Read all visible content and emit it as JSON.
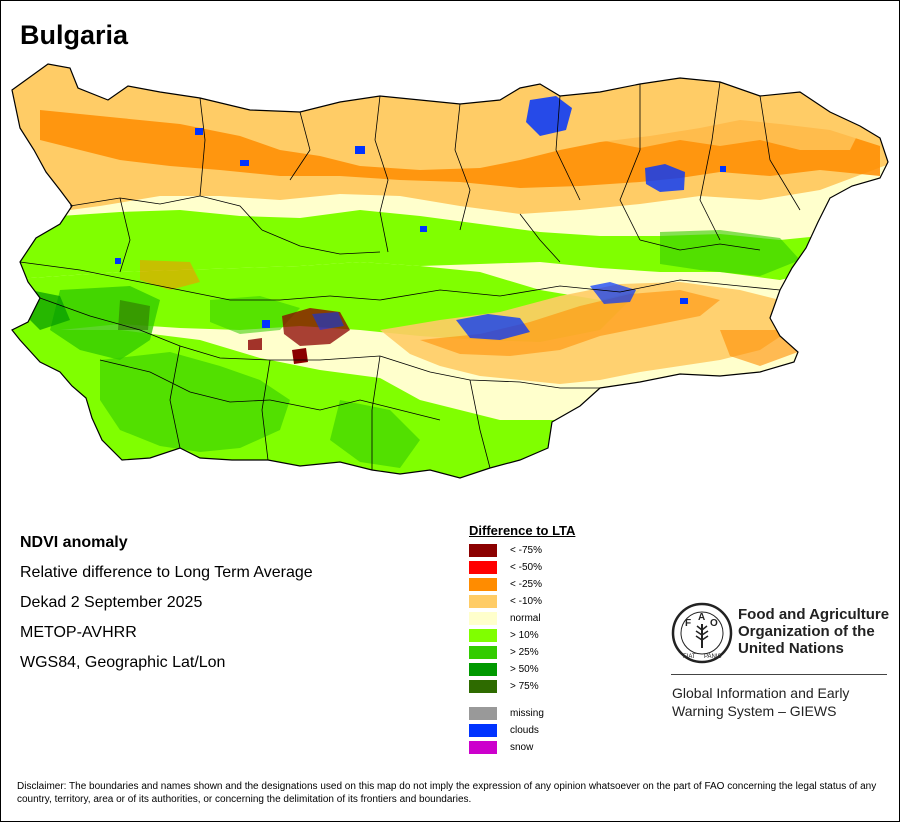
{
  "map_title": "Bulgaria",
  "info_lines": [
    "NDVI anomaly",
    "Relative difference to Long Term Average",
    "Dekad 2 September 2025",
    "METOP-AVHRR",
    "WGS84, Geographic Lat/Lon"
  ],
  "legend": {
    "title": "Difference to LTA",
    "classes": [
      {
        "label": "< -75%",
        "color": "#8b0000"
      },
      {
        "label": "< -50%",
        "color": "#ff0000"
      },
      {
        "label": "< -25%",
        "color": "#ff8c00"
      },
      {
        "label": "< -10%",
        "color": "#ffcc66"
      },
      {
        "label": "normal",
        "color": "#ffffcc"
      },
      {
        "label": "> 10%",
        "color": "#80ff00"
      },
      {
        "label": "> 25%",
        "color": "#33cc00"
      },
      {
        "label": "> 50%",
        "color": "#009900"
      },
      {
        "label": "> 75%",
        "color": "#2e6b00"
      }
    ],
    "other": [
      {
        "label": "missing",
        "color": "#999999"
      },
      {
        "label": "clouds",
        "color": "#0033ff"
      },
      {
        "label": "snow",
        "color": "#cc00cc"
      }
    ]
  },
  "organization": {
    "name_lines": [
      "Food and Agriculture",
      "Organization of the",
      "United Nations"
    ],
    "logo_text": "FAO FIAT PANIS",
    "system_lines": [
      "Global Information and Early",
      "Warning System – GIEWS"
    ]
  },
  "disclaimer": "Disclaimer: The boundaries and names shown and the designations used on this map do not imply the expression of any opinion whatsoever on the part of FAO concerning the legal status of any country, territory, area or of its authorities, or concerning the delimitation of its frontiers and boundaries."
}
